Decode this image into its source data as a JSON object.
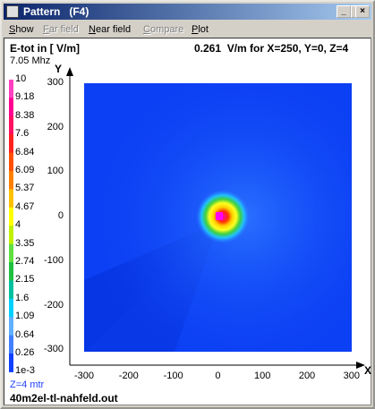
{
  "window": {
    "title": "Pattern   (F4)",
    "menu": [
      "Show",
      "Far field",
      "Near field",
      "Compare",
      "Plot"
    ]
  },
  "plot": {
    "quantity": "E-tot in [ V/m]",
    "readout": "0.261  V/m for X=250, Y=0, Z=4",
    "frequency": "7.05 Mhz",
    "scale": [
      "10",
      "9.18",
      "8.38",
      "7.6",
      "6.84",
      "6.09",
      "5.37",
      "4.67",
      "4",
      "3.35",
      "2.74",
      "2.15",
      "1.6",
      "1.09",
      "0.64",
      "0.26",
      "1e-3"
    ],
    "height": "Z=4 mtr",
    "y_axis": "Y",
    "x_axis": "X",
    "yticks": [
      "300",
      "200",
      "100",
      "0",
      "-100",
      "-200",
      "-300"
    ],
    "xticks": [
      "-300",
      "-200",
      "-100",
      "0",
      "100",
      "200",
      "300"
    ]
  },
  "file": "40m2el-tl-nahfeld.out"
}
